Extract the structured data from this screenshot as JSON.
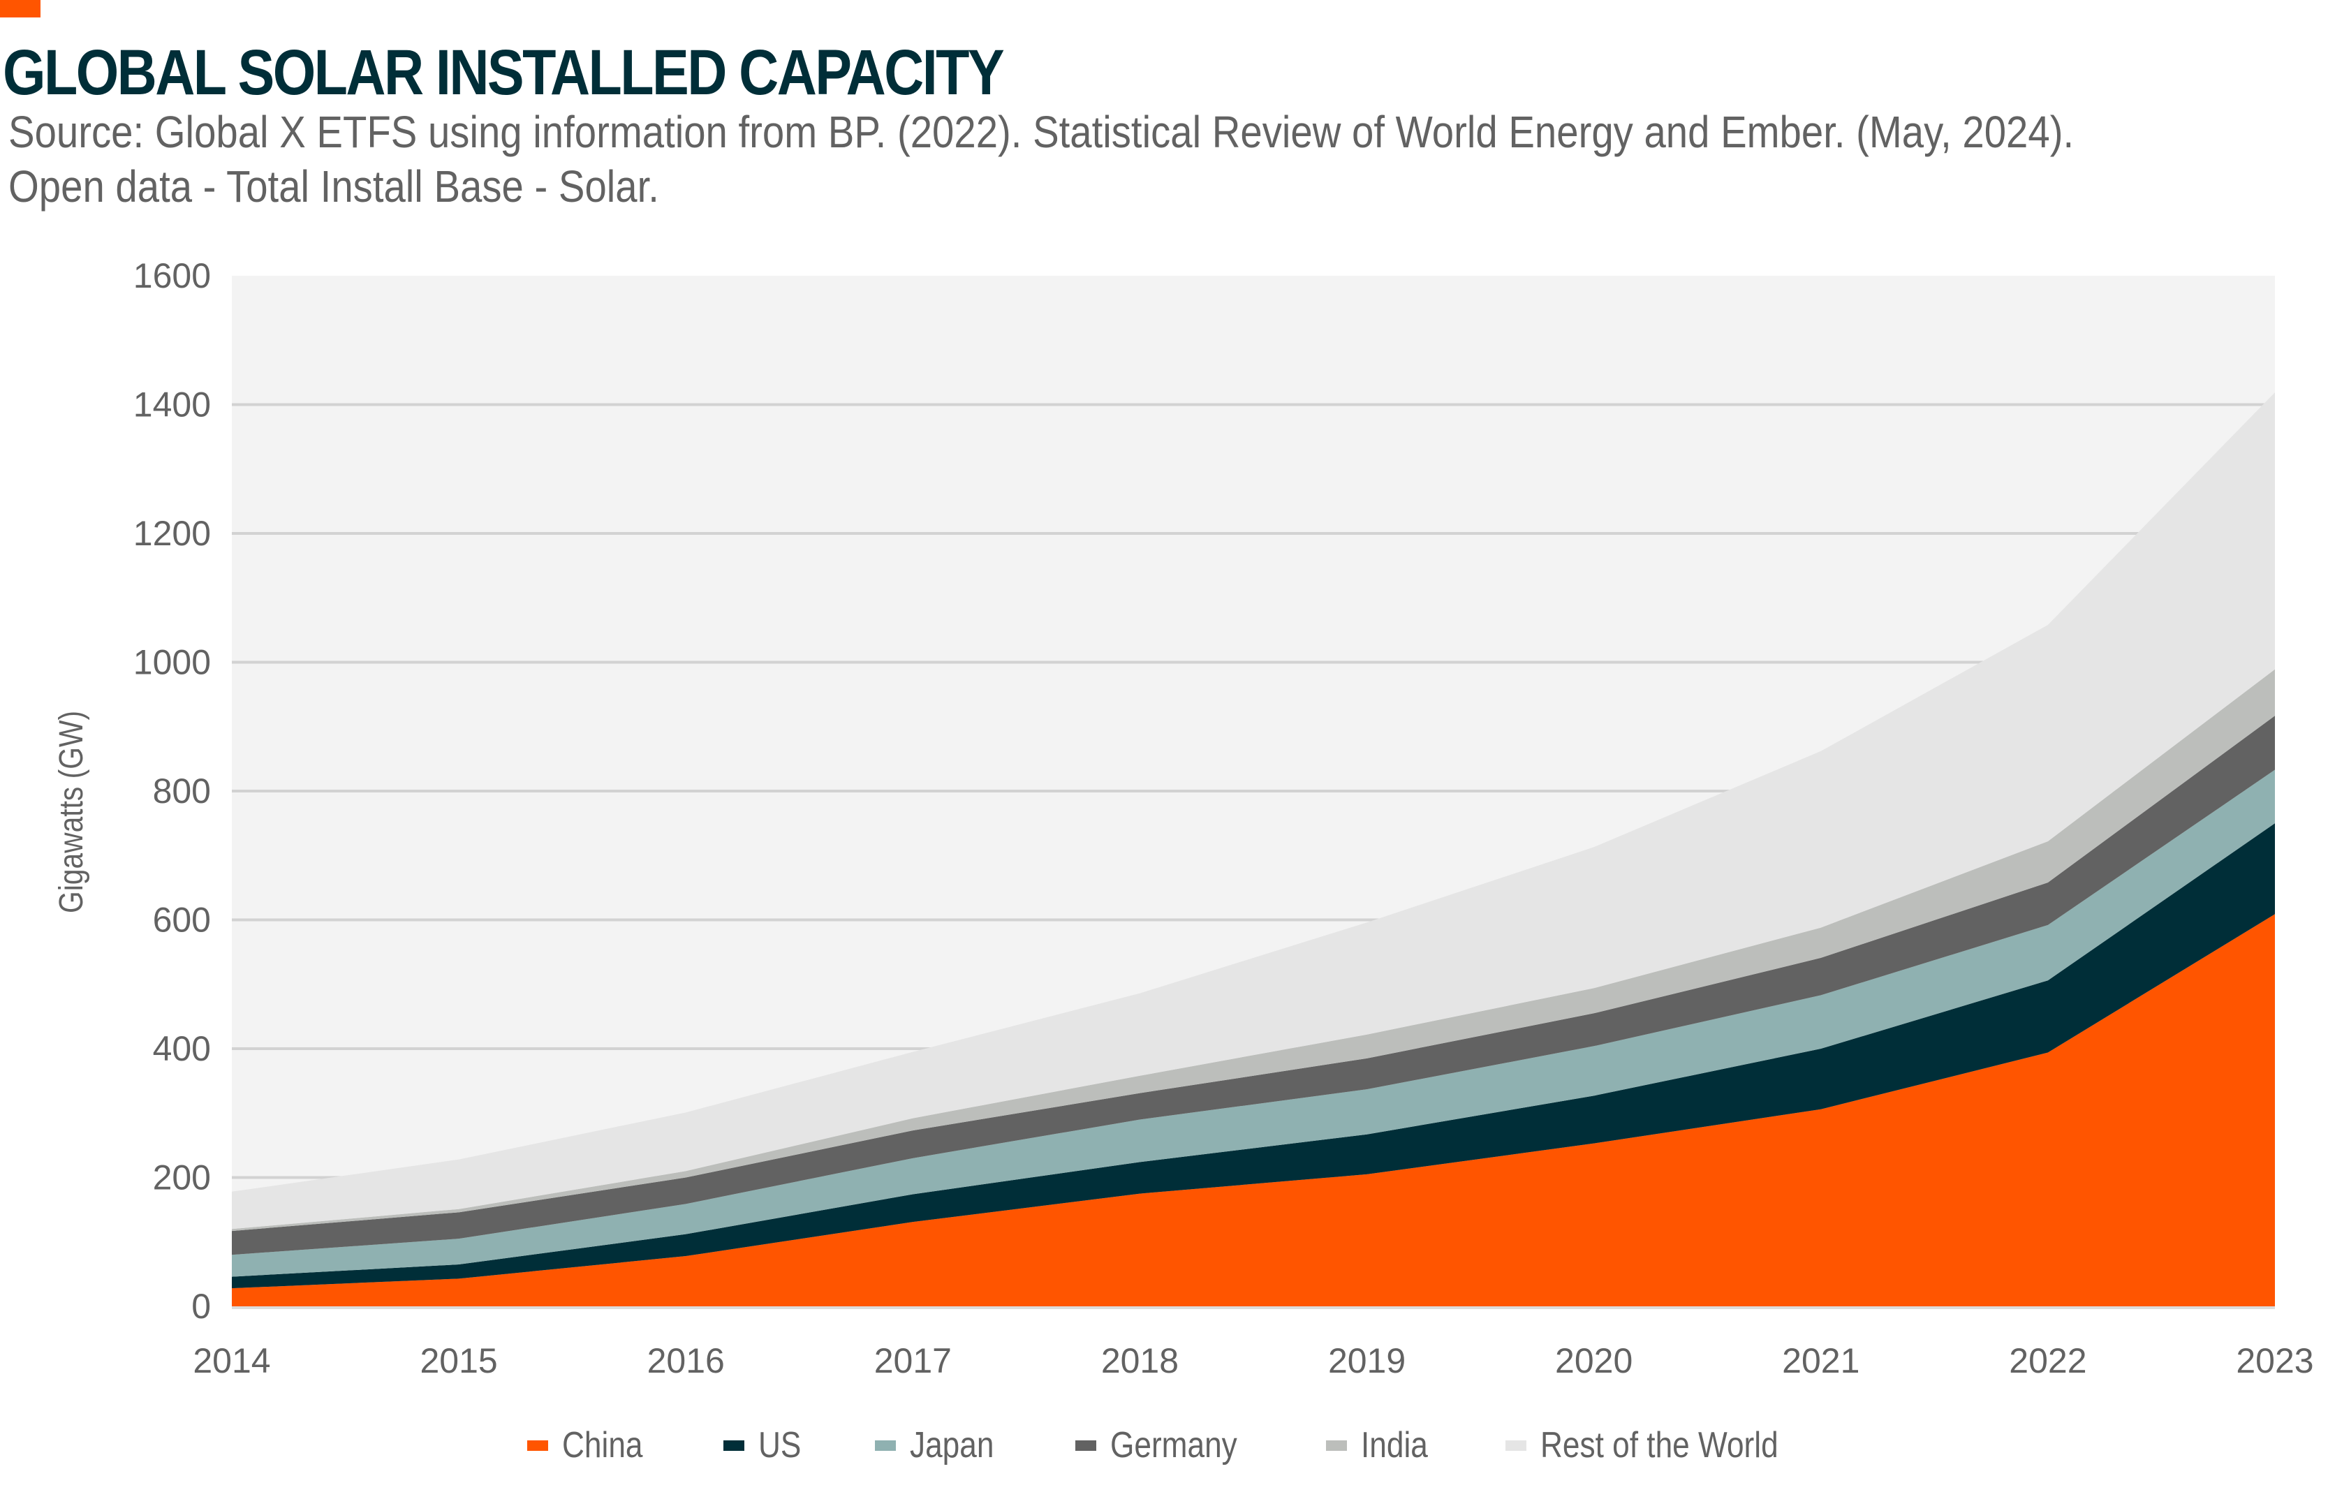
{
  "header": {
    "title": "GLOBAL SOLAR INSTALLED CAPACITY",
    "source_line1": "Source: Global X ETFS using information from BP. (2022). Statistical Review of World Energy and Ember. (May, 2024).",
    "source_line2": "Open data - Total Install Base - Solar."
  },
  "colors": {
    "accent": "#ff5500",
    "title": "#002e38",
    "text": "#626262",
    "plot_background": "#f3f3f3",
    "gridline": "#d2d2d2"
  },
  "chart_data": {
    "type": "area",
    "stacked": true,
    "title": "GLOBAL SOLAR INSTALLED CAPACITY",
    "xlabel": "",
    "ylabel": "Gigawatts (GW)",
    "ylim": [
      0,
      1600
    ],
    "yticks": [
      0,
      200,
      400,
      600,
      800,
      1000,
      1200,
      1400,
      1600
    ],
    "x": [
      "2014",
      "2015",
      "2016",
      "2017",
      "2018",
      "2019",
      "2020",
      "2021",
      "2022",
      "2023"
    ],
    "grid": true,
    "legend_position": "bottom",
    "series": [
      {
        "name": "China",
        "color": "#ff5500",
        "values": [
          28,
          43,
          78,
          131,
          175,
          205,
          253,
          306,
          394,
          609
        ]
      },
      {
        "name": "US",
        "color": "#002e38",
        "values": [
          18,
          22,
          34,
          43,
          49,
          62,
          74,
          94,
          112,
          141
        ]
      },
      {
        "name": "Japan",
        "color": "#8fb1b1",
        "values": [
          34,
          40,
          47,
          56,
          66,
          70,
          77,
          83,
          86,
          83
        ]
      },
      {
        "name": "Germany",
        "color": "#626262",
        "values": [
          37,
          41,
          41,
          43,
          41,
          48,
          51,
          58,
          66,
          84
        ]
      },
      {
        "name": "India",
        "color": "#bcbebb",
        "values": [
          3,
          5,
          10,
          19,
          27,
          37,
          39,
          47,
          64,
          72
        ]
      },
      {
        "name": "Rest of the World",
        "color": "#e5e5e5",
        "values": [
          58,
          77,
          91,
          103,
          128,
          174,
          219,
          274,
          336,
          430
        ]
      }
    ]
  }
}
